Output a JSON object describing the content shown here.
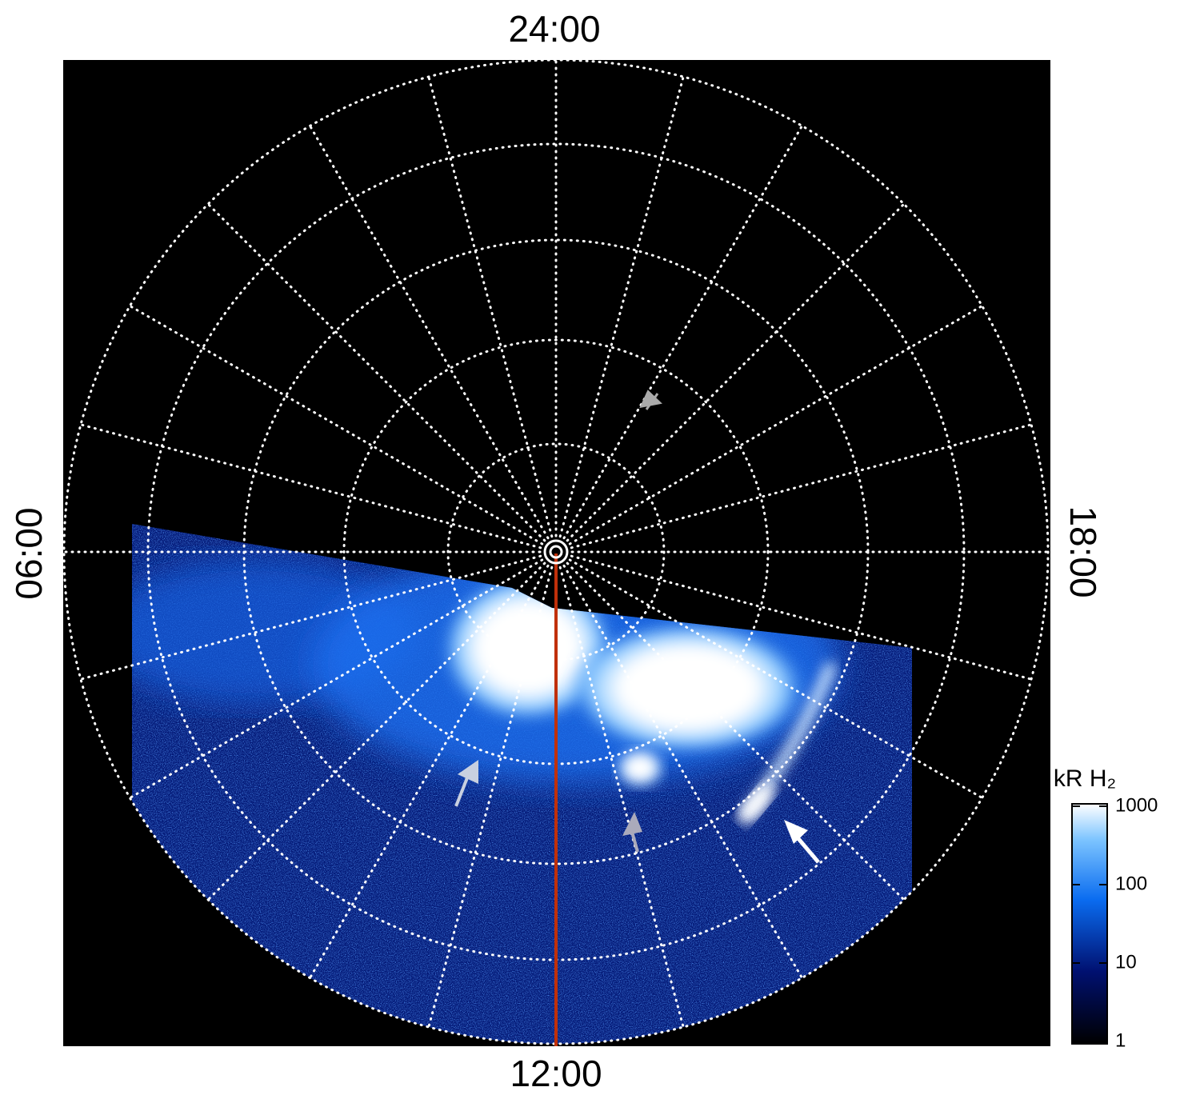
{
  "labels": {
    "top": "24:00",
    "left": "06:00",
    "right": "18:00",
    "bottom": "12:00"
  },
  "colorbar": {
    "title": "kR H₂",
    "scale": "log",
    "lim": [
      1,
      1000
    ],
    "ticks": [
      1,
      10,
      100,
      1000
    ]
  }
}
